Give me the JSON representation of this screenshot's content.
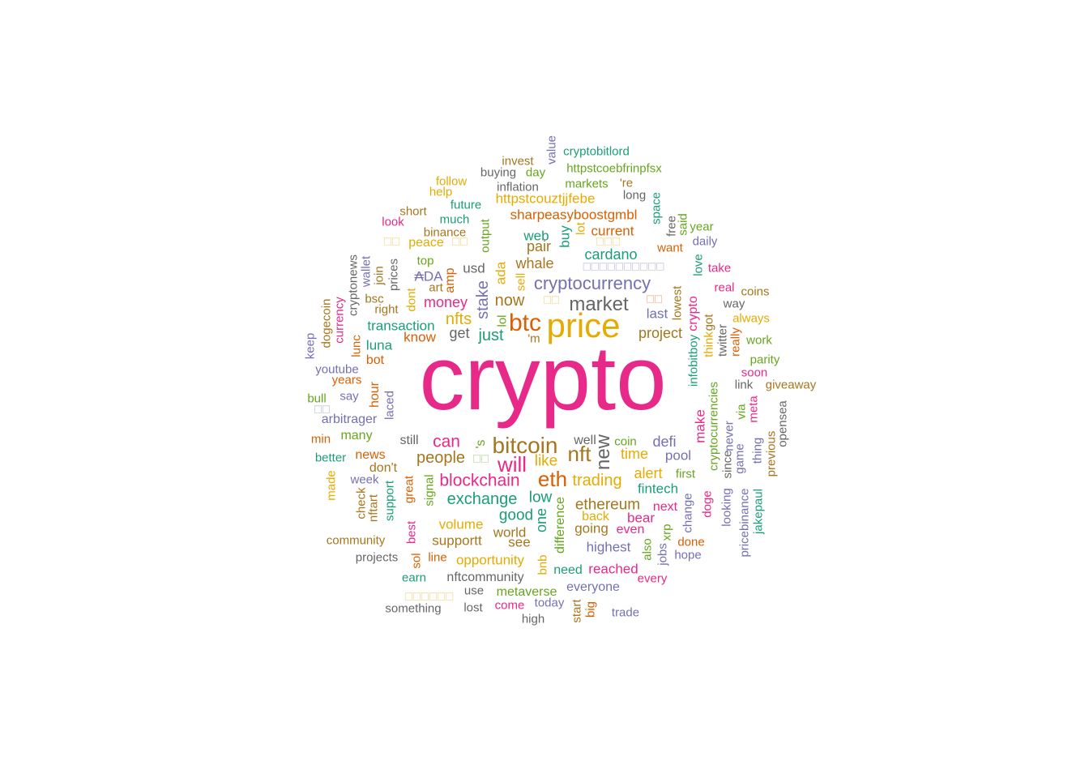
{
  "palette": {
    "magenta": "#e7298a",
    "mustard": "#e6ab02",
    "rust": "#d95f02",
    "brown": "#a6761d",
    "slate": "#7570b3",
    "teal": "#1b9e77",
    "green": "#66a61e",
    "gray": "#666666"
  },
  "words": [
    {
      "text": "crypto",
      "color": "magenta"
    },
    {
      "text": "price",
      "color": "mustard"
    },
    {
      "text": "btc",
      "color": "rust"
    },
    {
      "text": "bitcoin",
      "color": "brown"
    },
    {
      "text": "cryptocurrency",
      "color": "slate"
    },
    {
      "text": "market",
      "color": "gray"
    },
    {
      "text": "eth",
      "color": "rust"
    },
    {
      "text": "nft",
      "color": "brown"
    },
    {
      "text": "new",
      "color": "gray"
    },
    {
      "text": "will",
      "color": "magenta"
    },
    {
      "text": "blockchain",
      "color": "magenta"
    },
    {
      "text": "exchange",
      "color": "teal"
    },
    {
      "text": "trading",
      "color": "mustard"
    },
    {
      "text": "now",
      "color": "brown"
    },
    {
      "text": "nfts",
      "color": "mustard"
    },
    {
      "text": "stake",
      "color": "slate"
    },
    {
      "text": "just",
      "color": "teal"
    },
    {
      "text": "money",
      "color": "magenta"
    },
    {
      "text": "ethereum",
      "color": "brown"
    },
    {
      "text": "people",
      "color": "brown"
    },
    {
      "text": "can",
      "color": "magenta"
    },
    {
      "text": "like",
      "color": "mustard"
    },
    {
      "text": "project",
      "color": "brown"
    },
    {
      "text": "cardano",
      "color": "teal"
    },
    {
      "text": "sharpeasyboostgmbl",
      "color": "rust"
    },
    {
      "text": "httpstcouztjjfebe",
      "color": "mustard"
    },
    {
      "text": "httpstcoebfrinpfsx",
      "color": "green"
    },
    {
      "text": "cryptobitlord",
      "color": "teal"
    },
    {
      "text": "value",
      "color": "slate"
    },
    {
      "text": "invest",
      "color": "brown"
    },
    {
      "text": "buying",
      "color": "gray"
    },
    {
      "text": "day",
      "color": "green"
    },
    {
      "text": "follow",
      "color": "mustard"
    },
    {
      "text": "inflation",
      "color": "gray"
    },
    {
      "text": "markets",
      "color": "green"
    },
    {
      "text": "'re",
      "color": "brown"
    },
    {
      "text": "help",
      "color": "mustard"
    },
    {
      "text": "future",
      "color": "teal"
    },
    {
      "text": "long",
      "color": "gray"
    },
    {
      "text": "short",
      "color": "brown"
    },
    {
      "text": "much",
      "color": "teal"
    },
    {
      "text": "look",
      "color": "magenta"
    },
    {
      "text": "binance",
      "color": "brown"
    },
    {
      "text": "output",
      "color": "green"
    },
    {
      "text": "space",
      "color": "teal"
    },
    {
      "text": "free",
      "color": "gray"
    },
    {
      "text": "said",
      "color": "green"
    },
    {
      "text": "year",
      "color": "green"
    },
    {
      "text": "web",
      "color": "teal"
    },
    {
      "text": "buy",
      "color": "teal"
    },
    {
      "text": "lot",
      "color": "mustard"
    },
    {
      "text": "current",
      "color": "rust"
    },
    {
      "text": "want",
      "color": "rust"
    },
    {
      "text": "daily",
      "color": "slate"
    },
    {
      "text": "peace",
      "color": "mustard"
    },
    {
      "text": "pair",
      "color": "brown"
    },
    {
      "text": "top",
      "color": "green"
    },
    {
      "text": "whale",
      "color": "brown"
    },
    {
      "text": "take",
      "color": "magenta"
    },
    {
      "text": "love",
      "color": "teal"
    },
    {
      "text": "usd",
      "color": "gray"
    },
    {
      "text": "ada",
      "color": "mustard"
    },
    {
      "text": "sell",
      "color": "mustard"
    },
    {
      "text": "₳DA",
      "color": "slate"
    },
    {
      "text": "amp",
      "color": "rust"
    },
    {
      "text": "art",
      "color": "brown"
    },
    {
      "text": "prices",
      "color": "gray"
    },
    {
      "text": "wallet",
      "color": "slate"
    },
    {
      "text": "join",
      "color": "brown"
    },
    {
      "text": "cryptonews",
      "color": "gray"
    },
    {
      "text": "bsc",
      "color": "brown"
    },
    {
      "text": "dont",
      "color": "mustard"
    },
    {
      "text": "right",
      "color": "brown"
    },
    {
      "text": "lowest",
      "color": "brown"
    },
    {
      "text": "crypto",
      "color": "magenta"
    },
    {
      "text": "real",
      "color": "magenta"
    },
    {
      "text": "coins",
      "color": "brown"
    },
    {
      "text": "way",
      "color": "gray"
    },
    {
      "text": "last",
      "color": "slate"
    },
    {
      "text": "lol",
      "color": "green"
    },
    {
      "text": "transaction",
      "color": "teal"
    },
    {
      "text": "got",
      "color": "brown"
    },
    {
      "text": "always",
      "color": "mustard"
    },
    {
      "text": "dogecoin",
      "color": "brown"
    },
    {
      "text": "currency",
      "color": "magenta"
    },
    {
      "text": "know",
      "color": "rust"
    },
    {
      "text": "get",
      "color": "gray"
    },
    {
      "text": "'m",
      "color": "brown"
    },
    {
      "text": "infobitboy",
      "color": "teal"
    },
    {
      "text": "think",
      "color": "mustard"
    },
    {
      "text": "twitter",
      "color": "gray"
    },
    {
      "text": "really",
      "color": "rust"
    },
    {
      "text": "work",
      "color": "green"
    },
    {
      "text": "keep",
      "color": "slate"
    },
    {
      "text": "lunc",
      "color": "rust"
    },
    {
      "text": "luna",
      "color": "teal"
    },
    {
      "text": "bot",
      "color": "rust"
    },
    {
      "text": "parity",
      "color": "green"
    },
    {
      "text": "soon",
      "color": "magenta"
    },
    {
      "text": "youtube",
      "color": "slate"
    },
    {
      "text": "years",
      "color": "rust"
    },
    {
      "text": "link",
      "color": "gray"
    },
    {
      "text": "giveaway",
      "color": "brown"
    },
    {
      "text": "cryptocurrencies",
      "color": "green"
    },
    {
      "text": "bull",
      "color": "green"
    },
    {
      "text": "say",
      "color": "slate"
    },
    {
      "text": "hour",
      "color": "rust"
    },
    {
      "text": "laced",
      "color": "slate"
    },
    {
      "text": "meta",
      "color": "magenta"
    },
    {
      "text": "via",
      "color": "green"
    },
    {
      "text": "opensea",
      "color": "gray"
    },
    {
      "text": "arbitrager",
      "color": "slate"
    },
    {
      "text": "make",
      "color": "magenta"
    },
    {
      "text": "never",
      "color": "slate"
    },
    {
      "text": "min",
      "color": "rust"
    },
    {
      "text": "many",
      "color": "green"
    },
    {
      "text": "still",
      "color": "gray"
    },
    {
      "text": "'s",
      "color": "green"
    },
    {
      "text": "well",
      "color": "gray"
    },
    {
      "text": "coin",
      "color": "green"
    },
    {
      "text": "defi",
      "color": "slate"
    },
    {
      "text": "thing",
      "color": "slate"
    },
    {
      "text": "better",
      "color": "teal"
    },
    {
      "text": "news",
      "color": "rust"
    },
    {
      "text": "time",
      "color": "mustard"
    },
    {
      "text": "pool",
      "color": "slate"
    },
    {
      "text": "since",
      "color": "gray"
    },
    {
      "text": "game",
      "color": "slate"
    },
    {
      "text": "previous",
      "color": "brown"
    },
    {
      "text": "don't",
      "color": "brown"
    },
    {
      "text": "made",
      "color": "mustard"
    },
    {
      "text": "week",
      "color": "slate"
    },
    {
      "text": "great",
      "color": "rust"
    },
    {
      "text": "signal",
      "color": "green"
    },
    {
      "text": "alert",
      "color": "mustard"
    },
    {
      "text": "first",
      "color": "green"
    },
    {
      "text": "support",
      "color": "teal"
    },
    {
      "text": "fintech",
      "color": "teal"
    },
    {
      "text": "low",
      "color": "teal"
    },
    {
      "text": "check",
      "color": "brown"
    },
    {
      "text": "nftart",
      "color": "brown"
    },
    {
      "text": "looking",
      "color": "slate"
    },
    {
      "text": "doge",
      "color": "magenta"
    },
    {
      "text": "next",
      "color": "magenta"
    },
    {
      "text": "change",
      "color": "slate"
    },
    {
      "text": "pricebinance",
      "color": "slate"
    },
    {
      "text": "jakepaul",
      "color": "teal"
    },
    {
      "text": "good",
      "color": "teal"
    },
    {
      "text": "one",
      "color": "teal"
    },
    {
      "text": "back",
      "color": "mustard"
    },
    {
      "text": "bear",
      "color": "magenta"
    },
    {
      "text": "xrp",
      "color": "green"
    },
    {
      "text": "difference",
      "color": "green"
    },
    {
      "text": "volume",
      "color": "mustard"
    },
    {
      "text": "best",
      "color": "magenta"
    },
    {
      "text": "world",
      "color": "brown"
    },
    {
      "text": "going",
      "color": "brown"
    },
    {
      "text": "even",
      "color": "magenta"
    },
    {
      "text": "done",
      "color": "rust"
    },
    {
      "text": "community",
      "color": "brown"
    },
    {
      "text": "supportt",
      "color": "brown"
    },
    {
      "text": "see",
      "color": "brown"
    },
    {
      "text": "highest",
      "color": "slate"
    },
    {
      "text": "also",
      "color": "green"
    },
    {
      "text": "jobs",
      "color": "slate"
    },
    {
      "text": "hope",
      "color": "slate"
    },
    {
      "text": "projects",
      "color": "gray"
    },
    {
      "text": "sol",
      "color": "rust"
    },
    {
      "text": "line",
      "color": "rust"
    },
    {
      "text": "opportunity",
      "color": "mustard"
    },
    {
      "text": "bnb",
      "color": "mustard"
    },
    {
      "text": "reached",
      "color": "magenta"
    },
    {
      "text": "earn",
      "color": "teal"
    },
    {
      "text": "nftcommunity",
      "color": "gray"
    },
    {
      "text": "need",
      "color": "teal"
    },
    {
      "text": "every",
      "color": "magenta"
    },
    {
      "text": "use",
      "color": "gray"
    },
    {
      "text": "everyone",
      "color": "slate"
    },
    {
      "text": "metaverse",
      "color": "green"
    },
    {
      "text": "something",
      "color": "gray"
    },
    {
      "text": "lost",
      "color": "gray"
    },
    {
      "text": "come",
      "color": "magenta"
    },
    {
      "text": "today",
      "color": "slate"
    },
    {
      "text": "start",
      "color": "brown"
    },
    {
      "text": "big",
      "color": "rust"
    },
    {
      "text": "trade",
      "color": "slate"
    },
    {
      "text": "high",
      "color": "gray"
    }
  ]
}
